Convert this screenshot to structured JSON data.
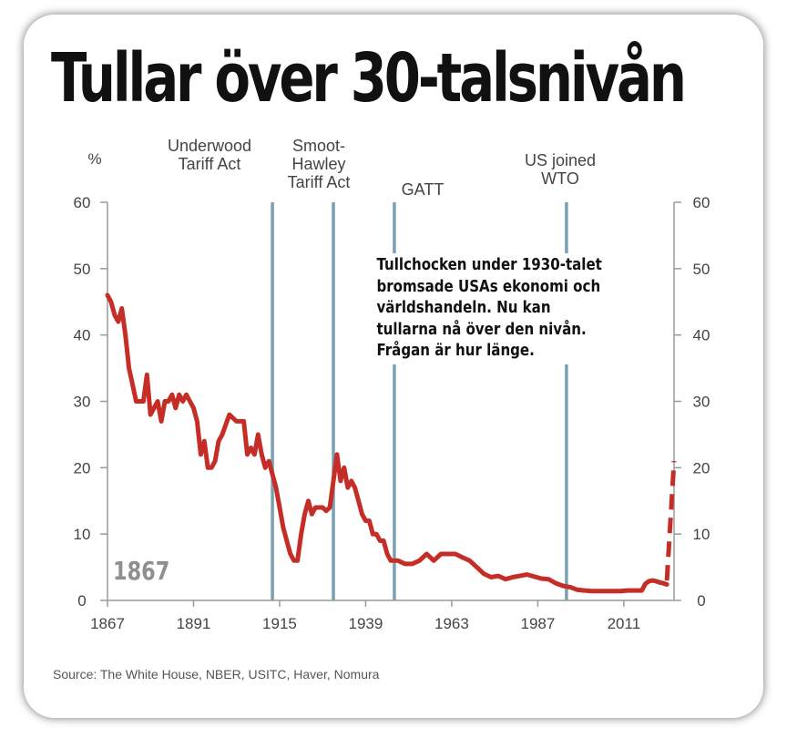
{
  "title": "Tullar över 30-talsnivån",
  "annotation": "Tullchocken under 1930-talet bromsade USAs ekonomi och världshandeln. Nu kan tullarna nå över den nivån. Frågan är hur länge.",
  "badge": "1867",
  "source": "Source: The White House, NBER, USITC, Haver, Nomura",
  "colors": {
    "line": "#c42e26",
    "event_line": "#7aa0b4",
    "axis": "#9a9a9a",
    "text": "#444444"
  },
  "chart_data": {
    "type": "line",
    "title": "",
    "unit_label": "%",
    "xlabel": "",
    "ylabel": "",
    "xlim": [
      1867,
      2025
    ],
    "ylim": [
      0,
      60
    ],
    "x_ticks": [
      "1867",
      "1891",
      "1915",
      "1939",
      "1963",
      "1987",
      "2011"
    ],
    "y_ticks": [
      "0",
      "10",
      "20",
      "30",
      "40",
      "50",
      "60"
    ],
    "grid": false,
    "events": [
      {
        "year": 1913,
        "label_lines": [
          "Underwood",
          "Tariff Act"
        ]
      },
      {
        "year": 1930,
        "label_lines": [
          "Smoot-",
          "Hawley",
          "Tariff Act"
        ]
      },
      {
        "year": 1947,
        "label_lines": [
          "GATT"
        ]
      },
      {
        "year": 1995,
        "label_lines": [
          "US joined",
          "WTO"
        ]
      }
    ],
    "series": [
      {
        "x": [
          1867,
          1868,
          1869,
          1870,
          1871,
          1872,
          1873,
          1875,
          1877,
          1878,
          1879,
          1881,
          1882,
          1883,
          1884,
          1885,
          1886,
          1887,
          1888,
          1889,
          1890,
          1891,
          1892,
          1893,
          1894,
          1895,
          1896,
          1897,
          1898,
          1899,
          1901,
          1903,
          1905,
          1906,
          1907,
          1908,
          1909,
          1910,
          1911,
          1912,
          1913,
          1914,
          1915,
          1916,
          1917,
          1918,
          1919,
          1920,
          1921,
          1922,
          1923,
          1924,
          1925,
          1926,
          1927,
          1928,
          1929,
          1930,
          1931,
          1932,
          1933,
          1934,
          1935,
          1936,
          1937,
          1938,
          1939,
          1940,
          1941,
          1942,
          1943,
          1944,
          1945,
          1946,
          1948,
          1950,
          1952,
          1954,
          1956,
          1958,
          1960,
          1962,
          1964,
          1966,
          1968,
          1970,
          1972,
          1974,
          1976,
          1978,
          1980,
          1982,
          1984,
          1986,
          1988,
          1990,
          1992,
          1994,
          1996,
          1998,
          2000,
          2002,
          2004,
          2006,
          2008,
          2010,
          2012,
          2014,
          2016,
          2017,
          2018,
          2019,
          2020,
          2021,
          2022,
          2023
        ],
        "y": [
          46,
          45,
          43,
          42,
          44,
          40,
          35,
          30,
          30,
          34,
          28,
          30,
          27,
          30,
          30,
          31,
          29,
          31,
          30,
          31,
          30,
          29,
          27,
          22,
          24,
          20,
          20,
          21,
          24,
          25,
          28,
          27,
          27,
          22,
          23,
          22,
          25,
          22,
          20,
          21,
          19,
          17,
          14,
          11,
          9,
          7,
          6,
          6,
          10,
          13,
          15,
          13,
          14,
          14,
          14,
          13.5,
          14,
          18,
          22,
          18,
          20,
          17,
          18,
          17,
          15,
          13,
          12,
          12,
          10,
          10,
          9,
          9,
          7,
          6,
          6,
          5.5,
          5.5,
          6,
          7,
          6,
          7,
          7,
          7,
          6.5,
          6,
          5,
          4,
          3.5,
          3.7,
          3.2,
          3.5,
          3.7,
          3.9,
          3.6,
          3.3,
          3.2,
          2.6,
          2.2,
          2,
          1.6,
          1.5,
          1.4,
          1.4,
          1.4,
          1.4,
          1.4,
          1.5,
          1.5,
          1.5,
          2.5,
          2.9,
          3,
          2.9,
          2.7,
          2.6,
          2.4
        ]
      }
    ],
    "projection": {
      "x": [
        2023,
        2025
      ],
      "y": [
        3,
        21
      ],
      "style": "dashed"
    }
  }
}
